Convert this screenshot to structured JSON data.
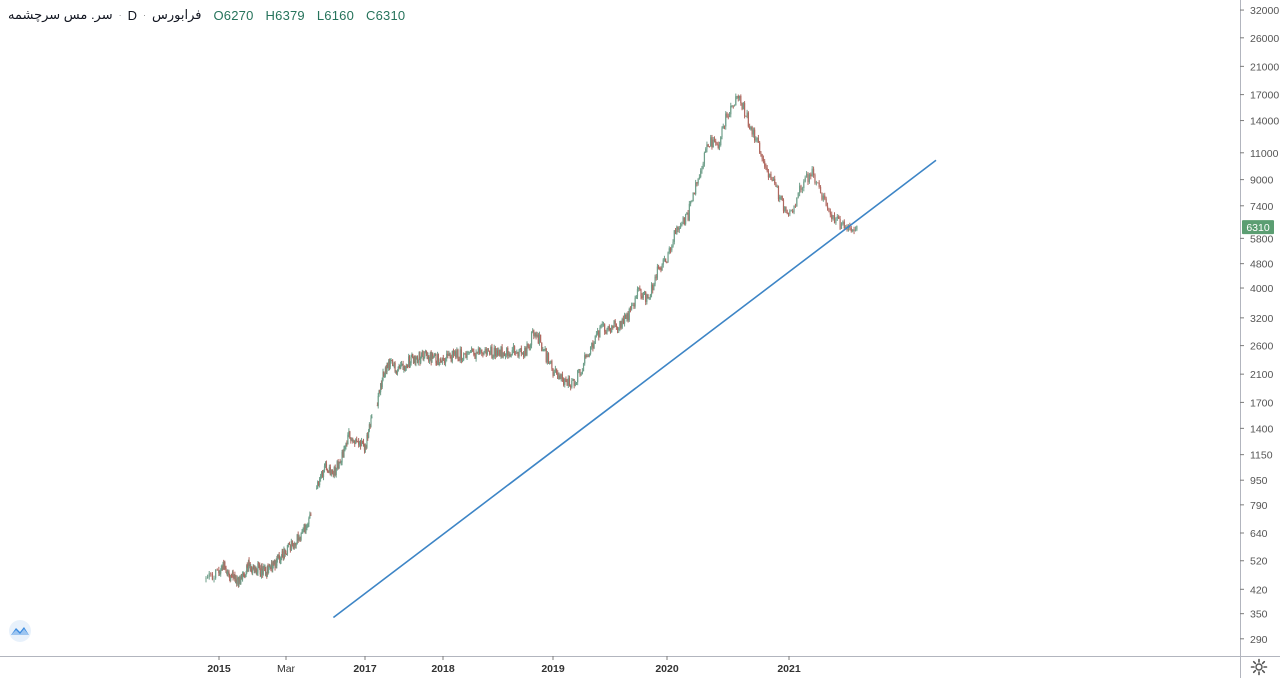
{
  "header": {
    "symbol": "سر. مس سرچشمه",
    "timeframe": "D",
    "exchange": "فرابورس",
    "separator": "·",
    "ohlc": {
      "open": "O6270",
      "high": "H6379",
      "low": "L6160",
      "close": "C6310"
    }
  },
  "icons": {
    "logo": "tradingview-cloud-icon",
    "settings": "gear-icon"
  },
  "colors": {
    "up": "#26a69a",
    "down": "#ef5350",
    "candle": "#8c6d65",
    "trendline": "#3d85c6",
    "price_label_bg": "#5b9e72",
    "axis": "#7c7c7c"
  },
  "chart_data": {
    "type": "candlestick",
    "scale": "log",
    "y_ticks": [
      "32000",
      "26000",
      "21000",
      "17000",
      "14000",
      "11000",
      "9000",
      "7400",
      "5800",
      "4800",
      "4000",
      "3200",
      "2600",
      "2100",
      "1700",
      "1400",
      "1150",
      "950",
      "790",
      "640",
      "520",
      "420",
      "350",
      "290"
    ],
    "x_ticks": [
      "2015",
      "Mar",
      "2017",
      "2018",
      "2019",
      "2020",
      "2021"
    ],
    "last_price": "6310",
    "trendline": {
      "start": [
        "2016-09",
        340
      ],
      "end": [
        "2022-02",
        10400
      ]
    },
    "series_path": [
      [
        "2014-12",
        450
      ],
      [
        "2015-01",
        480
      ],
      [
        "2015-02",
        510
      ],
      [
        "2015-03",
        470
      ],
      [
        "2015-05",
        440
      ],
      [
        "2015-07",
        500
      ],
      [
        "2015-09",
        490
      ],
      [
        "2015-11",
        480
      ],
      [
        "2016-01",
        520
      ],
      [
        "2016-03",
        560
      ],
      [
        "2016-05",
        640
      ],
      [
        "2016-06",
        700
      ],
      [
        "2016-07",
        900
      ],
      [
        "2016-08",
        1080
      ],
      [
        "2016-09",
        1000
      ],
      [
        "2016-10",
        1120
      ],
      [
        "2016-11",
        1330
      ],
      [
        "2016-12",
        1250
      ],
      [
        "2017-01",
        1200
      ],
      [
        "2017-02",
        1480
      ],
      [
        "2017-03",
        1750
      ],
      [
        "2017-04",
        2150
      ],
      [
        "2017-05",
        2250
      ],
      [
        "2017-06",
        2200
      ],
      [
        "2017-08",
        2350
      ],
      [
        "2017-10",
        2400
      ],
      [
        "2017-12",
        2350
      ],
      [
        "2018-02",
        2400
      ],
      [
        "2018-04",
        2450
      ],
      [
        "2018-06",
        2480
      ],
      [
        "2018-08",
        2500
      ],
      [
        "2018-10",
        2450
      ],
      [
        "2018-11",
        2950
      ],
      [
        "2018-12",
        2500
      ],
      [
        "2019-01",
        2150
      ],
      [
        "2019-02",
        2000
      ],
      [
        "2019-03",
        1950
      ],
      [
        "2019-04",
        2200
      ],
      [
        "2019-05",
        2600
      ],
      [
        "2019-06",
        2900
      ],
      [
        "2019-08",
        3050
      ],
      [
        "2019-09",
        3300
      ],
      [
        "2019-10",
        3900
      ],
      [
        "2019-11",
        3700
      ],
      [
        "2019-12",
        4500
      ],
      [
        "2020-01",
        5000
      ],
      [
        "2020-02",
        6300
      ],
      [
        "2020-03",
        6800
      ],
      [
        "2020-04",
        9000
      ],
      [
        "2020-05",
        12000
      ],
      [
        "2020-06",
        11500
      ],
      [
        "2020-07",
        15000
      ],
      [
        "2020-08",
        16800
      ],
      [
        "2020-09",
        14000
      ],
      [
        "2020-10",
        11500
      ],
      [
        "2020-11",
        9500
      ],
      [
        "2020-12",
        8000
      ],
      [
        "2021-01",
        6800
      ],
      [
        "2021-02",
        8500
      ],
      [
        "2021-03",
        9500
      ],
      [
        "2021-04",
        7800
      ],
      [
        "2021-05",
        6600
      ],
      [
        "2021-06",
        6400
      ],
      [
        "2021-07",
        6310
      ]
    ],
    "gaps": [
      [
        "2016-06",
        "2016-07"
      ],
      [
        "2017-02",
        "2017-03"
      ]
    ]
  }
}
